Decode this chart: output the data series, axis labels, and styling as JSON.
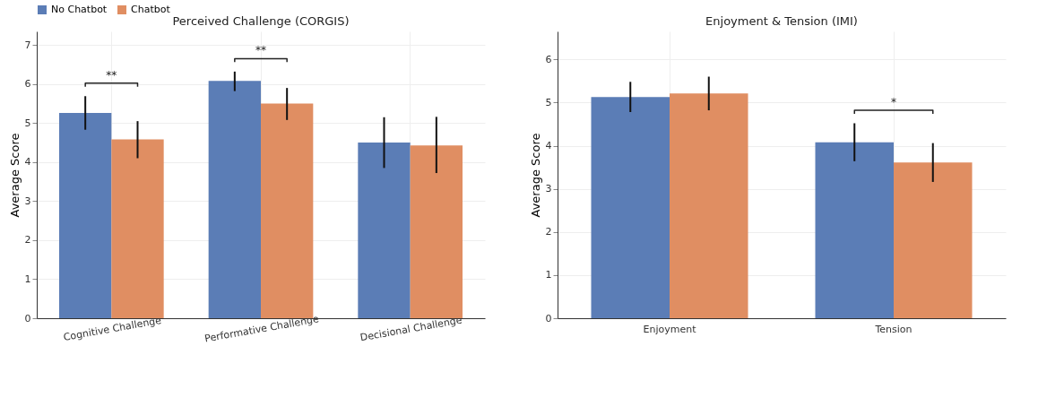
{
  "chart_data": [
    {
      "type": "bar",
      "title": "Perceived Challenge (CORGIS)",
      "ylabel": "Average Score",
      "categories": [
        "Cognitive Challenge",
        "Performative Challenge",
        "Decisional Challenge"
      ],
      "series": [
        {
          "name": "No Chatbot",
          "color": "#5b7db6",
          "values": [
            5.26,
            6.08,
            4.5
          ],
          "errors": [
            [
              4.83,
              5.69
            ],
            [
              5.82,
              6.32
            ],
            [
              3.85,
              5.15
            ]
          ]
        },
        {
          "name": "Chatbot",
          "color": "#e08e62",
          "values": [
            4.58,
            5.5,
            4.43
          ],
          "errors": [
            [
              4.1,
              5.05
            ],
            [
              5.08,
              5.9
            ],
            [
              3.72,
              5.16
            ]
          ]
        }
      ],
      "ylim": [
        0,
        7.35
      ],
      "yticks": [
        0,
        1,
        2,
        3,
        4,
        5,
        6,
        7
      ],
      "grid": true,
      "legend": "top",
      "annotations": [
        "**",
        "**"
      ]
    },
    {
      "type": "bar",
      "title": "Enjoyment & Tension (IMI)",
      "ylabel": "Average Score",
      "categories": [
        "Enjoyment",
        "Tension"
      ],
      "series": [
        {
          "name": "No Chatbot",
          "color": "#5b7db6",
          "values": [
            5.13,
            4.08
          ],
          "errors": [
            [
              4.78,
              5.48
            ],
            [
              3.64,
              4.52
            ]
          ]
        },
        {
          "name": "Chatbot",
          "color": "#e08e62",
          "values": [
            5.21,
            3.61
          ],
          "errors": [
            [
              4.82,
              5.6
            ],
            [
              3.16,
              4.06
            ]
          ]
        }
      ],
      "ylim": [
        0,
        6.65
      ],
      "yticks": [
        0,
        1,
        2,
        3,
        4,
        5,
        6
      ],
      "grid": true,
      "legend": "top",
      "annotations": [
        "*"
      ]
    }
  ]
}
